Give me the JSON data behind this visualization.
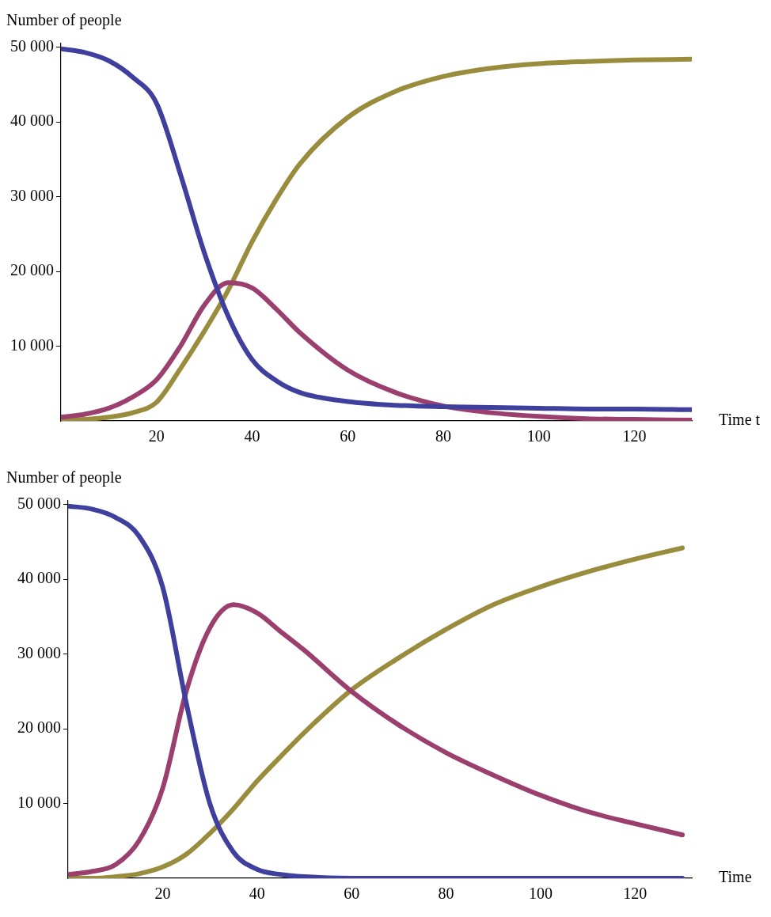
{
  "chart_data": [
    {
      "type": "line",
      "xlabel": "Time t",
      "ylabel": "Number of people",
      "x": [
        0,
        5,
        10,
        15,
        20,
        25,
        30,
        35,
        40,
        45,
        50,
        60,
        70,
        80,
        90,
        100,
        110,
        120,
        132
      ],
      "xlim": [
        0,
        132
      ],
      "ylim": [
        0,
        50500
      ],
      "xticks": [
        20,
        40,
        60,
        80,
        100,
        120
      ],
      "yticks": [
        {
          "value": 10000,
          "label": "10 000"
        },
        {
          "value": 20000,
          "label": "20 000"
        },
        {
          "value": 30000,
          "label": "30 000"
        },
        {
          "value": 40000,
          "label": "40 000"
        },
        {
          "value": 50000,
          "label": "50 000"
        }
      ],
      "grid": false,
      "legend": false,
      "series": [
        {
          "color": "#3f3f9d",
          "values": [
            49800,
            49300,
            48200,
            46000,
            42500,
            33000,
            22500,
            14000,
            8200,
            5400,
            3800,
            2600,
            2100,
            1900,
            1800,
            1700,
            1600,
            1600,
            1500
          ]
        },
        {
          "color": "#9b3f6f",
          "values": [
            500,
            900,
            1700,
            3200,
            5500,
            10000,
            15500,
            18500,
            17800,
            15000,
            11800,
            6800,
            3800,
            2000,
            1100,
            600,
            300,
            200,
            100
          ]
        },
        {
          "color": "#9a8c3d",
          "values": [
            0,
            200,
            500,
            1100,
            2500,
            7000,
            12000,
            17500,
            24000,
            29600,
            34400,
            40600,
            44100,
            46100,
            47200,
            47800,
            48100,
            48300,
            48400
          ]
        }
      ]
    },
    {
      "type": "line",
      "xlabel": "Time",
      "ylabel": "Number of people",
      "x": [
        0,
        5,
        10,
        15,
        20,
        25,
        30,
        35,
        40,
        45,
        50,
        60,
        70,
        80,
        90,
        100,
        110,
        120,
        130
      ],
      "xlim": [
        0,
        132
      ],
      "ylim": [
        0,
        50500
      ],
      "xticks": [
        20,
        40,
        60,
        80,
        100,
        120
      ],
      "yticks": [
        {
          "value": 10000,
          "label": "10 000"
        },
        {
          "value": 20000,
          "label": "20 000"
        },
        {
          "value": 30000,
          "label": "30 000"
        },
        {
          "value": 40000,
          "label": "40 000"
        },
        {
          "value": 50000,
          "label": "50 000"
        }
      ],
      "grid": false,
      "legend": false,
      "series": [
        {
          "color": "#3f3f9d",
          "values": [
            49800,
            49400,
            48300,
            45800,
            39000,
            23500,
            10000,
            3500,
            1200,
            500,
            200,
            0,
            0,
            0,
            0,
            0,
            0,
            0,
            0
          ]
        },
        {
          "color": "#9b3f6f",
          "values": [
            500,
            900,
            1800,
            5000,
            12000,
            25000,
            33500,
            36600,
            35500,
            33000,
            30500,
            25000,
            20500,
            16800,
            13800,
            11100,
            8900,
            7300,
            5800
          ]
        },
        {
          "color": "#9a8c3d",
          "values": [
            0,
            0,
            200,
            600,
            1500,
            3200,
            6000,
            9300,
            13000,
            16300,
            19500,
            25200,
            29500,
            33300,
            36600,
            39000,
            41000,
            42700,
            44200
          ]
        }
      ]
    }
  ]
}
